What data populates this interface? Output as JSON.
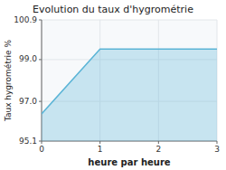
{
  "chart_data": {
    "type": "area",
    "title": "Evolution du taux d'hygrométrie",
    "xlabel": "heure par heure",
    "ylabel": "Taux hygrométrie %",
    "x": [
      0,
      1,
      2,
      3
    ],
    "values": [
      96.4,
      99.5,
      99.5,
      99.5
    ],
    "color": "#5ab4d6",
    "xlim": [
      0,
      3
    ],
    "ylim": [
      95.1,
      100.9
    ],
    "xticks": [
      0,
      1,
      2,
      3
    ],
    "yticks": [
      95.1,
      {
        "value": 97.0,
        "label": "97.0"
      },
      {
        "value": 99.0,
        "label": "99.0"
      },
      100.9
    ],
    "grid": true
  }
}
